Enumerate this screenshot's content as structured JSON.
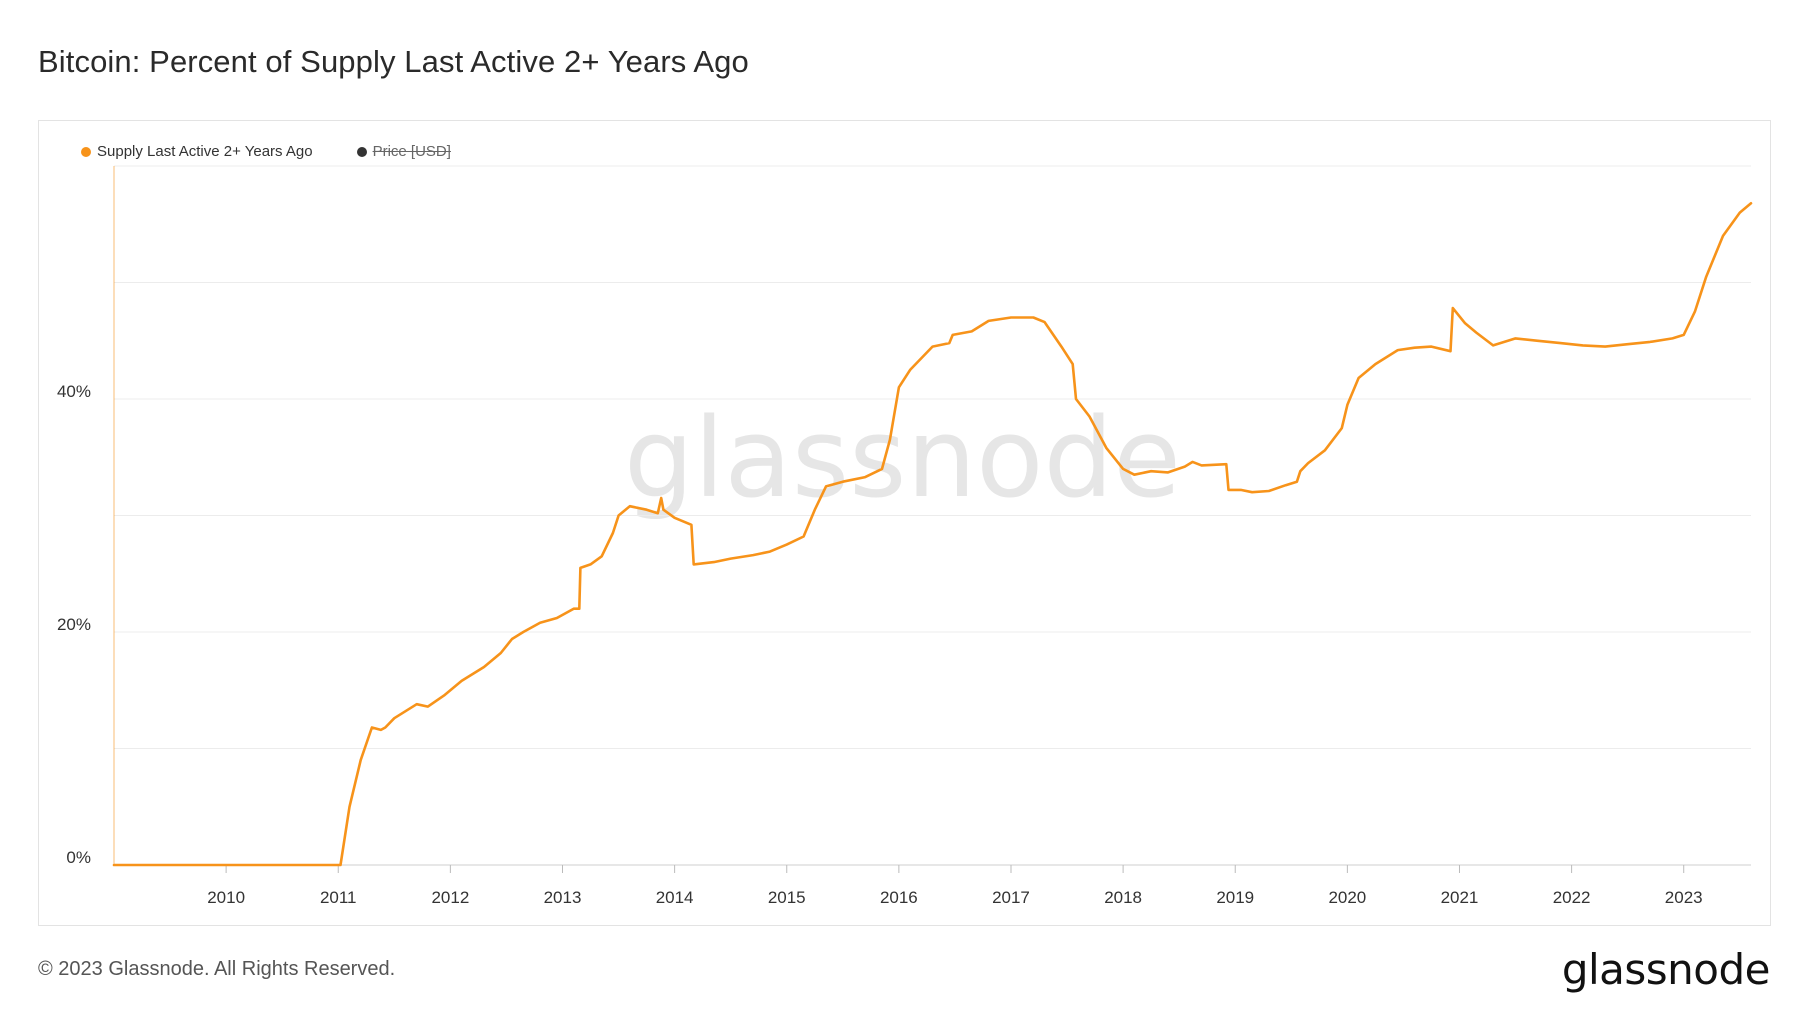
{
  "title": "Bitcoin: Percent of Supply Last Active 2+ Years Ago",
  "legend": [
    {
      "label": "Supply Last Active 2+ Years Ago",
      "color": "#f7931a",
      "active": true
    },
    {
      "label": "Price [USD]",
      "color": "#333333",
      "active": false
    }
  ],
  "watermark": "glassnode",
  "footer": "© 2023 Glassnode. All Rights Reserved.",
  "logo": "glassnode",
  "chart_data": {
    "type": "line",
    "title": "Bitcoin: Percent of Supply Last Active 2+ Years Ago",
    "xlabel": "",
    "ylabel": "",
    "x_ticks": [
      "2010",
      "2011",
      "2012",
      "2013",
      "2014",
      "2015",
      "2016",
      "2017",
      "2018",
      "2019",
      "2020",
      "2021",
      "2022",
      "2023"
    ],
    "y_ticks": [
      "0%",
      "20%",
      "40%"
    ],
    "xlim": [
      2009.0,
      2023.6
    ],
    "ylim": [
      0,
      60
    ],
    "grid": true,
    "legend_position": "top-left",
    "series": [
      {
        "name": "Supply Last Active 2+ Years Ago",
        "color": "#f7931a",
        "x": [
          2009.0,
          2011.02,
          2011.1,
          2011.2,
          2011.3,
          2011.38,
          2011.42,
          2011.5,
          2011.6,
          2011.7,
          2011.8,
          2011.95,
          2012.1,
          2012.3,
          2012.45,
          2012.55,
          2012.65,
          2012.8,
          2012.95,
          2013.1,
          2013.15,
          2013.16,
          2013.25,
          2013.35,
          2013.45,
          2013.5,
          2013.6,
          2013.75,
          2013.85,
          2013.88,
          2013.9,
          2014.0,
          2014.15,
          2014.17,
          2014.35,
          2014.5,
          2014.7,
          2014.85,
          2015.0,
          2015.15,
          2015.25,
          2015.35,
          2015.5,
          2015.7,
          2015.85,
          2015.92,
          2016.0,
          2016.1,
          2016.3,
          2016.45,
          2016.48,
          2016.65,
          2016.8,
          2017.0,
          2017.2,
          2017.3,
          2017.45,
          2017.55,
          2017.58,
          2017.7,
          2017.85,
          2018.0,
          2018.1,
          2018.25,
          2018.4,
          2018.55,
          2018.62,
          2018.7,
          2018.92,
          2018.94,
          2019.05,
          2019.15,
          2019.3,
          2019.45,
          2019.55,
          2019.58,
          2019.65,
          2019.8,
          2019.95,
          2020.0,
          2020.1,
          2020.25,
          2020.45,
          2020.6,
          2020.75,
          2020.92,
          2020.94,
          2021.05,
          2021.15,
          2021.3,
          2021.5,
          2021.7,
          2021.9,
          2022.1,
          2022.3,
          2022.5,
          2022.7,
          2022.9,
          2023.0,
          2023.1,
          2023.2,
          2023.35,
          2023.5,
          2023.6
        ],
        "values": [
          0.0,
          0.0,
          5.0,
          9.0,
          11.8,
          11.6,
          11.8,
          12.6,
          13.2,
          13.8,
          13.6,
          14.6,
          15.8,
          17.0,
          18.2,
          19.4,
          20.0,
          20.8,
          21.2,
          22.0,
          22.0,
          25.5,
          25.8,
          26.5,
          28.5,
          30.0,
          30.8,
          30.5,
          30.2,
          31.5,
          30.5,
          29.8,
          29.2,
          25.8,
          26.0,
          26.3,
          26.6,
          26.9,
          27.5,
          28.2,
          30.5,
          32.5,
          32.9,
          33.3,
          34.0,
          36.5,
          41.0,
          42.5,
          44.5,
          44.8,
          45.5,
          45.8,
          46.7,
          47.0,
          47.0,
          46.6,
          44.5,
          43.0,
          40.0,
          38.5,
          35.8,
          34.0,
          33.5,
          33.8,
          33.7,
          34.2,
          34.6,
          34.3,
          34.4,
          32.2,
          32.2,
          32.0,
          32.1,
          32.6,
          32.9,
          33.8,
          34.5,
          35.6,
          37.5,
          39.5,
          41.8,
          43.0,
          44.2,
          44.4,
          44.5,
          44.1,
          47.8,
          46.5,
          45.7,
          44.6,
          45.2,
          45.0,
          44.8,
          44.6,
          44.5,
          44.7,
          44.9,
          45.2,
          45.5,
          47.5,
          50.5,
          54.0,
          56.0,
          56.8
        ]
      }
    ]
  }
}
